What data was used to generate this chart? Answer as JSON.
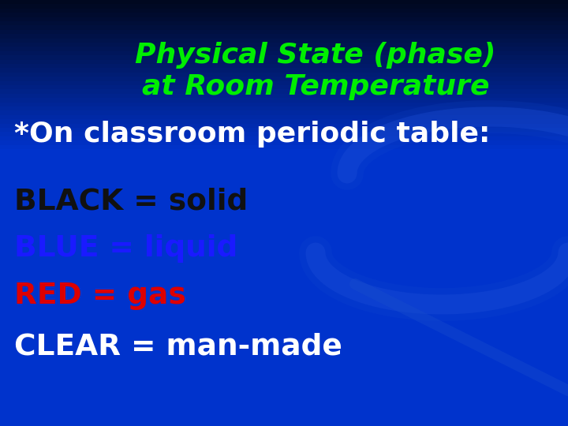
{
  "title_line1": "Physical State (phase)",
  "title_line2": "at Room Temperature",
  "title_color": "#00ee00",
  "title_fontsize": 26,
  "subtitle": "*On classroom periodic table:",
  "subtitle_color": "#ffffff",
  "subtitle_fontsize": 26,
  "lines": [
    {
      "text": "BLACK = solid",
      "color": "#111111"
    },
    {
      "text": "BLUE = liquid",
      "color": "#1a1aff"
    },
    {
      "text": "RED = gas",
      "color": "#dd0000"
    },
    {
      "text": "CLEAR = man-made",
      "color": "#ffffff"
    }
  ],
  "lines_fontsize": 27,
  "bg_top": "#000820",
  "bg_bottom": "#0033cc",
  "bg_mid": "#0033cc",
  "decor_color": "#1a4fd6",
  "decor_alpha": 0.35
}
